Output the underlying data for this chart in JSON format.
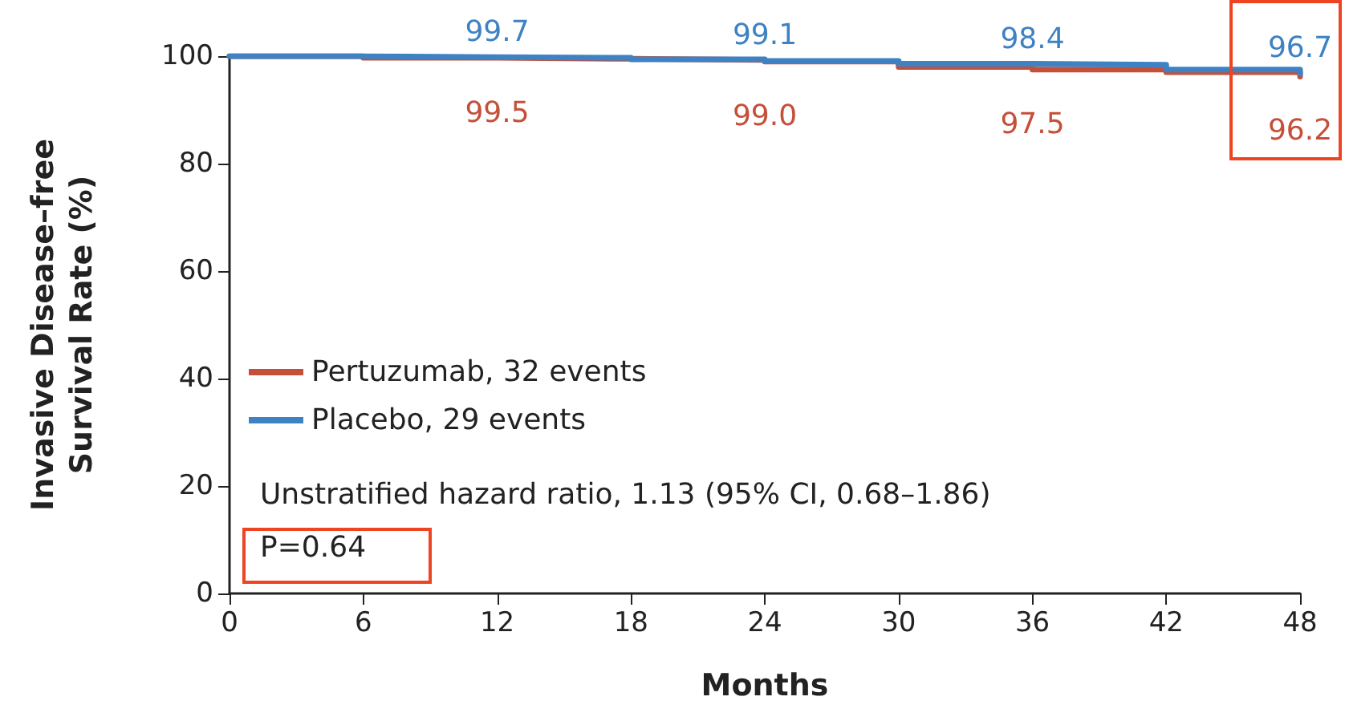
{
  "chart_data": {
    "type": "step",
    "xlabel": "Months",
    "ylabel": "Invasive Disease–free\nSurvival Rate (%)",
    "x": [
      0,
      6,
      12,
      18,
      24,
      30,
      36,
      42,
      48
    ],
    "series": [
      {
        "name": "Pertuzumab, 32 events",
        "color": "#c5503a",
        "values": [
          100,
          99.7,
          99.5,
          99.3,
          99.0,
          98.0,
          97.5,
          97.0,
          96.2
        ]
      },
      {
        "name": "Placebo, 29 events",
        "color": "#3f82c4",
        "values": [
          100,
          99.8,
          99.7,
          99.4,
          99.1,
          98.6,
          98.4,
          97.5,
          96.7
        ]
      }
    ],
    "xlim": [
      0,
      48
    ],
    "xticks": [
      0,
      6,
      12,
      18,
      24,
      30,
      36,
      42,
      48
    ],
    "ylim": [
      0,
      100
    ],
    "yticks": [
      0,
      20,
      40,
      60,
      80,
      100
    ],
    "legend": "left",
    "grid": false,
    "marker": "none",
    "line_style": "solid",
    "annotations": [
      {
        "text": "99.7",
        "x": 12,
        "y": 99.7
      },
      {
        "text": "99.1",
        "x": 24,
        "y": 99.1
      },
      {
        "text": "98.4",
        "x": 36,
        "y": 98.4
      },
      {
        "text": "96.7",
        "x": 48,
        "y": 96.7
      },
      {
        "text": "99.5",
        "x": 12,
        "y": 99.5
      },
      {
        "text": "99.0",
        "x": 24,
        "y": 99.0
      },
      {
        "text": "97.5",
        "x": 36,
        "y": 97.5
      },
      {
        "text": "96.2",
        "x": 48,
        "y": 96.2
      },
      "Unstratified hazard ratio, 1.13 (95% CI, 0.68–1.86)",
      "P=0.64"
    ]
  }
}
